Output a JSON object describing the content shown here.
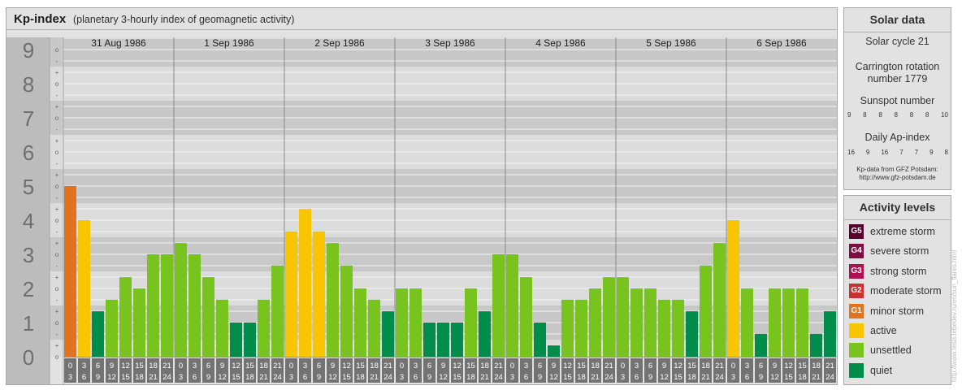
{
  "header": {
    "title": "Kp-index",
    "subtitle": "(planetary 3-hourly index of geomagnetic activity)"
  },
  "chart_data": {
    "type": "bar",
    "title": "Kp-index",
    "subtitle": "(planetary 3-hourly index of geomagnetic activity)",
    "ylim": [
      0,
      9
    ],
    "y_ticks": [
      "0",
      "1",
      "2",
      "3",
      "4",
      "5",
      "6",
      "7",
      "8",
      "9"
    ],
    "y_minor_ticks": [
      "o",
      "+",
      "-"
    ],
    "days": [
      "31 Aug 1986",
      "1 Sep 1986",
      "2 Sep 1986",
      "3 Sep 1986",
      "4 Sep 1986",
      "5 Sep 1986",
      "6 Sep 1986"
    ],
    "interval_starts": [
      "0",
      "3",
      "6",
      "9",
      "12",
      "15",
      "18",
      "21"
    ],
    "interval_ends": [
      "3",
      "6",
      "9",
      "12",
      "15",
      "18",
      "21",
      "24"
    ],
    "values": [
      [
        5.0,
        4.0,
        1.33,
        1.67,
        2.33,
        2.0,
        3.0,
        3.0
      ],
      [
        3.33,
        3.0,
        2.33,
        1.67,
        1.0,
        1.0,
        1.67,
        2.67
      ],
      [
        3.67,
        4.33,
        3.67,
        3.33,
        2.67,
        2.0,
        1.67,
        1.33
      ],
      [
        2.0,
        2.0,
        1.0,
        1.0,
        1.0,
        2.0,
        1.33,
        3.0
      ],
      [
        3.0,
        2.33,
        1.0,
        0.33,
        1.67,
        1.67,
        2.0,
        2.33
      ],
      [
        2.33,
        2.0,
        2.0,
        1.67,
        1.67,
        1.33,
        2.67,
        3.33
      ],
      [
        4.0,
        2.0,
        0.67,
        2.0,
        2.0,
        2.0,
        0.67,
        1.33
      ]
    ],
    "grid": true,
    "legend_placement": "right"
  },
  "colors": {
    "quiet": "#008c4a",
    "unsettled": "#78c31e",
    "active": "#f9c400",
    "G1": "#e1731e",
    "G2": "#cc3030",
    "G3": "#b01050",
    "G4": "#7a0f45",
    "G5": "#55002e",
    "band_dark": "#c8c8c8",
    "band_light": "#dcdcdc",
    "axis_band": "#bcbcbc",
    "time_cell": "#737373"
  },
  "solar": {
    "title": "Solar data",
    "cycle": "Solar cycle 21",
    "carrington_line1": "Carrington rotation",
    "carrington_line2": "number 1779",
    "sunspot_title": "Sunspot number",
    "sunspot_values": [
      "9",
      "8",
      "8",
      "8",
      "8",
      "8",
      "10"
    ],
    "ap_title": "Daily Ap-index",
    "ap_values": [
      "16",
      "9",
      "16",
      "7",
      "7",
      "9",
      "8"
    ],
    "credit_line1": "Kp-data from GFZ Potsdam:",
    "credit_line2": "http://www.gfz-potsdam.de"
  },
  "activity": {
    "title": "Activity levels",
    "levels": [
      {
        "badge": "G5",
        "label": "extreme storm",
        "color": "#55002e"
      },
      {
        "badge": "G4",
        "label": "severe storm",
        "color": "#7a0f45"
      },
      {
        "badge": "G3",
        "label": "strong storm",
        "color": "#b01050"
      },
      {
        "badge": "G2",
        "label": "moderate storm",
        "color": "#cc3030"
      },
      {
        "badge": "G1",
        "label": "minor storm",
        "color": "#e1731e"
      },
      {
        "badge": "",
        "label": "active",
        "color": "#f9c400"
      },
      {
        "badge": "",
        "label": "unsettled",
        "color": "#78c31e"
      },
      {
        "badge": "",
        "label": "quiet",
        "color": "#008c4a"
      }
    ]
  },
  "watermark": "http://www.tesis.lebedev.ru/en/sun_flares.html"
}
